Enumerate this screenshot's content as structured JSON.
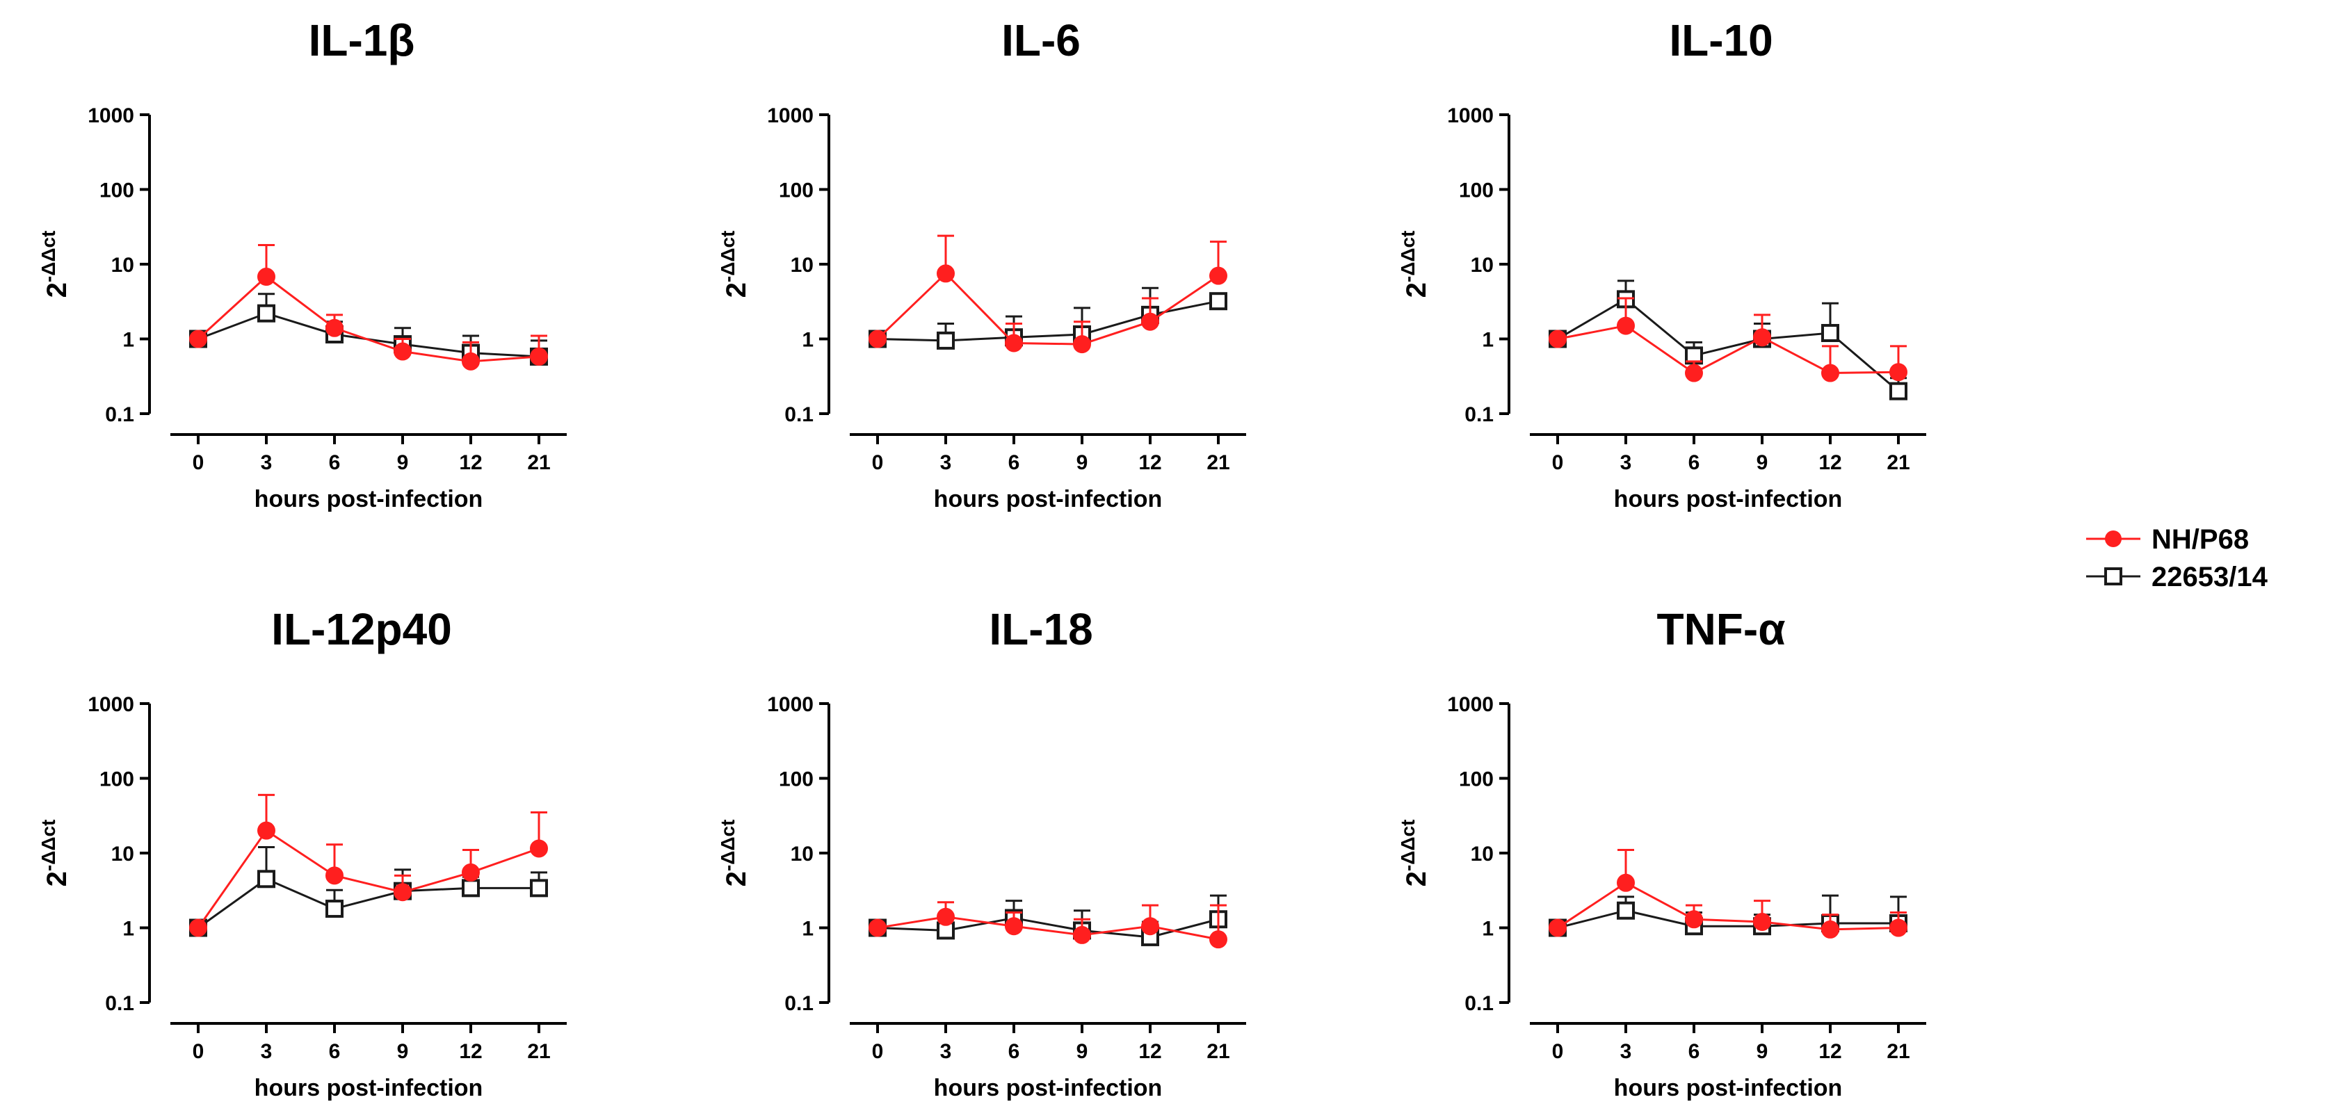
{
  "figure": {
    "y_label": {
      "base": "2",
      "exponent": "-ΔΔct"
    }
  },
  "legend": [
    {
      "name": "NH/P68",
      "color": "#ff1f1f",
      "marker": "filled-circle"
    },
    {
      "name": "22653/14",
      "color": "#1a1a1a",
      "marker": "open-square"
    }
  ],
  "chart_data": [
    {
      "type": "line",
      "title": "IL-1β",
      "xlabel": "hours post-infection",
      "ylabel": "2-ΔΔct",
      "yscale": "log",
      "ylim": [
        0.1,
        1000
      ],
      "yticks": [
        "0.1",
        "1",
        "10",
        "100",
        "1000"
      ],
      "x": [
        "0",
        "3",
        "6",
        "9",
        "12",
        "21"
      ],
      "series": [
        {
          "name": "NH/P68",
          "values": [
            1,
            6.8,
            1.4,
            0.68,
            0.5,
            0.58
          ],
          "error_upper": [
            1,
            18,
            2.1,
            1.0,
            0.9,
            1.1
          ]
        },
        {
          "name": "22653/14",
          "values": [
            1,
            2.2,
            1.15,
            0.85,
            0.65,
            0.58
          ],
          "error_upper": [
            1,
            4.0,
            1.7,
            1.4,
            1.1,
            0.95
          ]
        }
      ]
    },
    {
      "type": "line",
      "title": "IL-6",
      "xlabel": "hours post-infection",
      "ylabel": "2-ΔΔct",
      "yscale": "log",
      "ylim": [
        0.1,
        1000
      ],
      "yticks": [
        "0.1",
        "1",
        "10",
        "100",
        "1000"
      ],
      "x": [
        "0",
        "3",
        "6",
        "9",
        "12",
        "21"
      ],
      "series": [
        {
          "name": "NH/P68",
          "values": [
            1,
            7.5,
            0.88,
            0.85,
            1.7,
            7.0
          ],
          "error_upper": [
            1,
            24,
            1.6,
            1.7,
            3.5,
            20
          ]
        },
        {
          "name": "22653/14",
          "values": [
            1,
            0.95,
            1.05,
            1.15,
            2.1,
            3.2
          ],
          "error_upper": [
            1,
            1.6,
            2.0,
            2.6,
            4.8,
            4.0
          ]
        }
      ]
    },
    {
      "type": "line",
      "title": "IL-10",
      "xlabel": "hours post-infection",
      "ylabel": "2-ΔΔct",
      "yscale": "log",
      "ylim": [
        0.1,
        1000
      ],
      "yticks": [
        "0.1",
        "1",
        "10",
        "100",
        "1000"
      ],
      "x": [
        "0",
        "3",
        "6",
        "9",
        "12",
        "21"
      ],
      "series": [
        {
          "name": "NH/P68",
          "values": [
            1,
            1.5,
            0.35,
            1.05,
            0.35,
            0.36
          ],
          "error_upper": [
            1,
            3.5,
            0.5,
            2.1,
            0.8,
            0.8
          ]
        },
        {
          "name": "22653/14",
          "values": [
            1,
            3.4,
            0.6,
            1.0,
            1.2,
            0.2
          ],
          "error_upper": [
            1,
            6.0,
            0.9,
            1.6,
            3.0,
            0.3
          ]
        }
      ]
    },
    {
      "type": "line",
      "title": "IL-12p40",
      "xlabel": "hours post-infection",
      "ylabel": "2-ΔΔct",
      "yscale": "log",
      "ylim": [
        0.1,
        1000
      ],
      "yticks": [
        "0.1",
        "1",
        "10",
        "100",
        "1000"
      ],
      "x": [
        "0",
        "3",
        "6",
        "9",
        "12",
        "21"
      ],
      "series": [
        {
          "name": "NH/P68",
          "values": [
            1,
            20,
            5.0,
            3.0,
            5.5,
            11.5
          ],
          "error_upper": [
            1,
            60,
            13,
            5.0,
            11,
            35
          ]
        },
        {
          "name": "22653/14",
          "values": [
            1,
            4.5,
            1.8,
            3.1,
            3.4,
            3.4
          ],
          "error_upper": [
            1,
            12,
            3.2,
            6.0,
            4.8,
            5.5
          ]
        }
      ]
    },
    {
      "type": "line",
      "title": "IL-18",
      "xlabel": "hours post-infection",
      "ylabel": "2-ΔΔct",
      "yscale": "log",
      "ylim": [
        0.1,
        1000
      ],
      "yticks": [
        "0.1",
        "1",
        "10",
        "100",
        "1000"
      ],
      "x": [
        "0",
        "3",
        "6",
        "9",
        "12",
        "21"
      ],
      "series": [
        {
          "name": "NH/P68",
          "values": [
            1,
            1.4,
            1.05,
            0.8,
            1.05,
            0.7
          ],
          "error_upper": [
            1,
            2.2,
            1.6,
            1.3,
            2.0,
            2.0
          ]
        },
        {
          "name": "22653/14",
          "values": [
            1,
            0.92,
            1.35,
            0.92,
            0.75,
            1.3
          ],
          "error_upper": [
            1,
            1.3,
            2.3,
            1.7,
            1.2,
            2.7
          ]
        }
      ]
    },
    {
      "type": "line",
      "title": "TNF-α",
      "xlabel": "hours post-infection",
      "ylabel": "2-ΔΔct",
      "yscale": "log",
      "ylim": [
        0.1,
        1000
      ],
      "yticks": [
        "0.1",
        "1",
        "10",
        "100",
        "1000"
      ],
      "x": [
        "0",
        "3",
        "6",
        "9",
        "12",
        "21"
      ],
      "series": [
        {
          "name": "NH/P68",
          "values": [
            1,
            4.0,
            1.3,
            1.2,
            0.95,
            1.0
          ],
          "error_upper": [
            1,
            11,
            2.0,
            2.3,
            1.5,
            1.6
          ]
        },
        {
          "name": "22653/14",
          "values": [
            1,
            1.7,
            1.05,
            1.05,
            1.15,
            1.15
          ],
          "error_upper": [
            1,
            2.6,
            1.6,
            1.5,
            2.7,
            2.6
          ]
        }
      ]
    }
  ]
}
